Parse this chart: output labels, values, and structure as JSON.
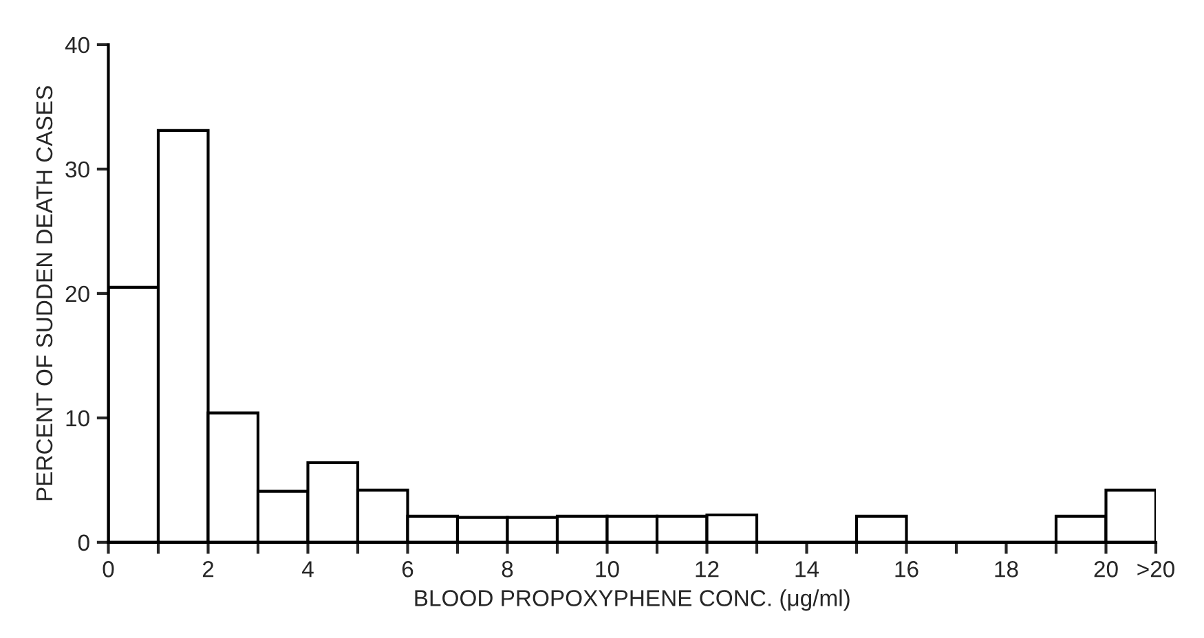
{
  "chart_data": {
    "type": "histogram",
    "xlabel": "BLOOD PROPOXYPHENE CONC. (μg/ml)",
    "ylabel": "PERCENT OF SUDDEN DEATH CASES",
    "bins": [
      0,
      1,
      2,
      3,
      4,
      5,
      6,
      7,
      8,
      9,
      10,
      11,
      12,
      13,
      14,
      15,
      16,
      17,
      18,
      19,
      20,
      21
    ],
    "values": [
      20.5,
      33.1,
      10.4,
      4.1,
      6.4,
      4.2,
      2.1,
      2.0,
      2.0,
      2.1,
      2.1,
      2.1,
      2.2,
      0,
      0,
      2.1,
      0,
      0,
      0,
      2.1,
      4.2
    ],
    "color": "#ffffff",
    "xlim": [
      0,
      21
    ],
    "ylim": [
      0,
      40
    ],
    "xticks": [
      0,
      {
        "value": 1,
        "label": null
      },
      2,
      {
        "value": 3,
        "label": null
      },
      4,
      {
        "value": 5,
        "label": null
      },
      6,
      {
        "value": 7,
        "label": null
      },
      8,
      {
        "value": 9,
        "label": null
      },
      10,
      {
        "value": 11,
        "label": null
      },
      12,
      {
        "value": 13,
        "label": null
      },
      14,
      {
        "value": 15,
        "label": null
      },
      16,
      {
        "value": 17,
        "label": null
      },
      18,
      {
        "value": 19,
        "label": null
      },
      20,
      {
        "value": 21,
        "label": ">20"
      }
    ],
    "yticks": [
      0,
      10,
      20,
      30,
      40
    ],
    "grid": false
  }
}
